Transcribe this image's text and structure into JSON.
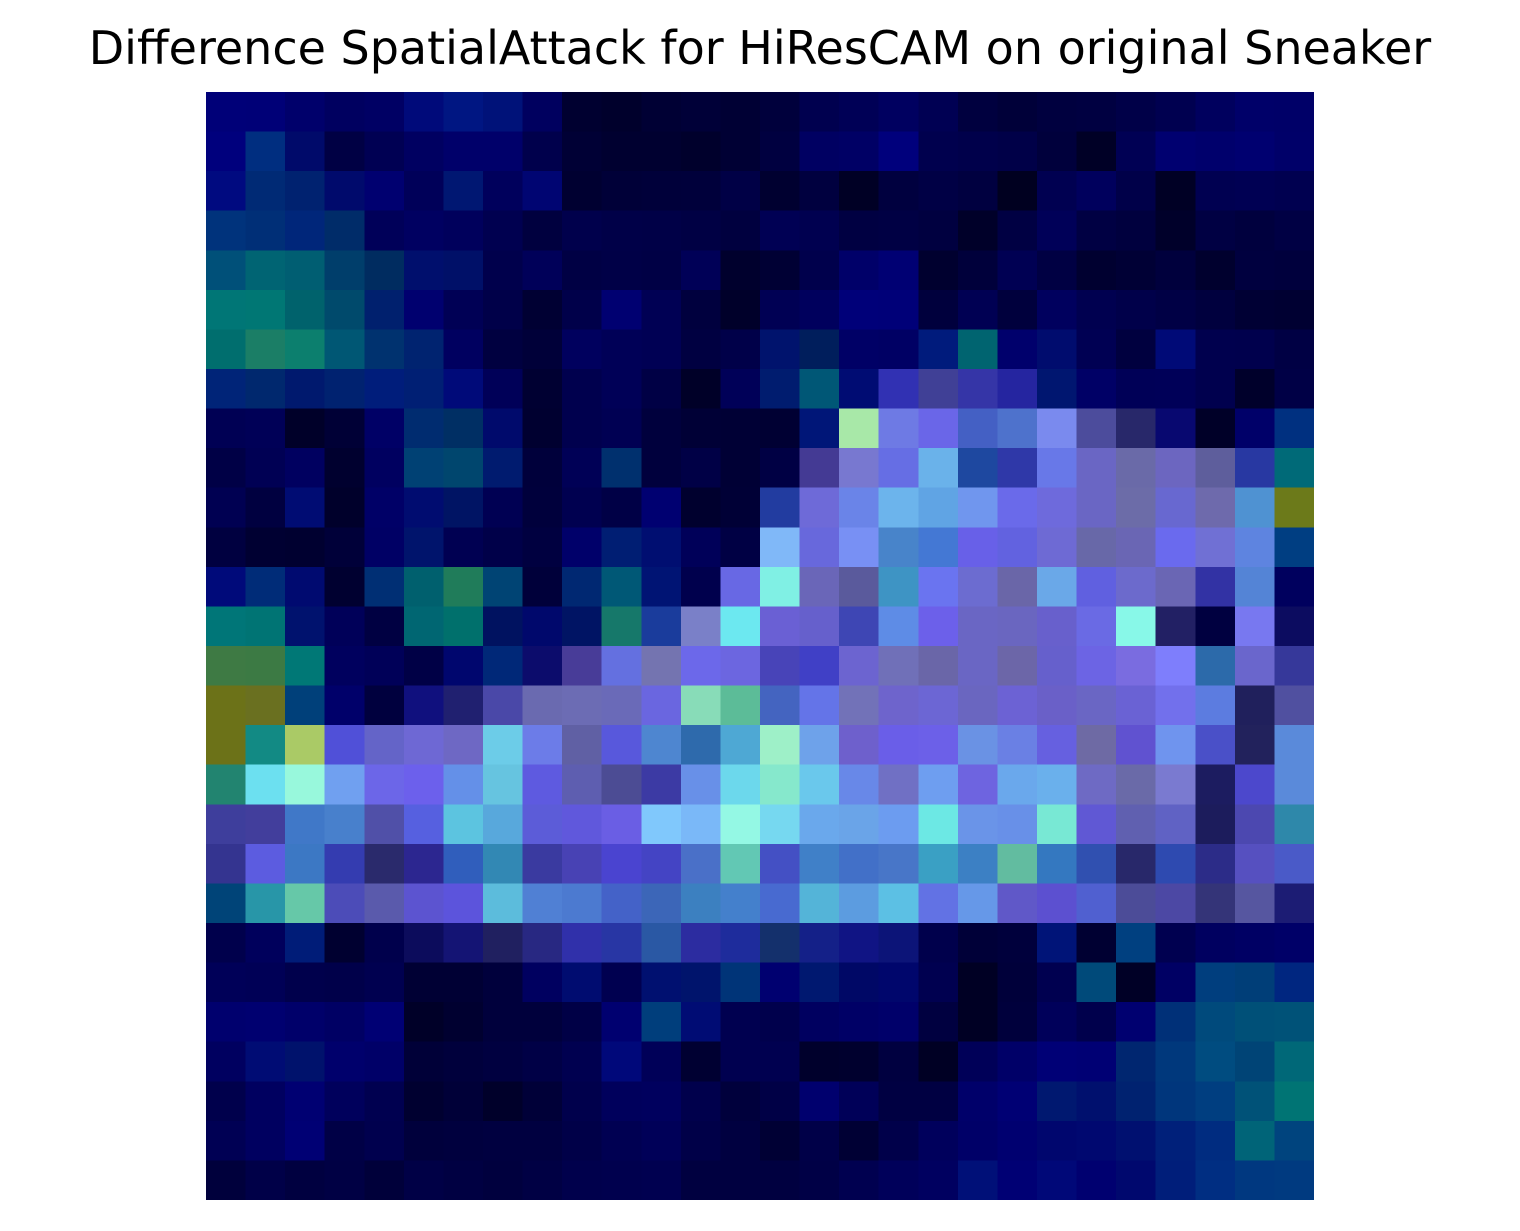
{
  "chart_data": {
    "type": "heatmap",
    "title": "Difference SpatialAttack for HiResCAM on original Sneaker",
    "rows": 28,
    "cols": 28,
    "axes": "off",
    "grid": false,
    "legend": "none",
    "colors": [
      [
        "#000078",
        "#000077",
        "#00006b",
        "#000060",
        "#000064",
        "#000a7a",
        "#001682",
        "#001279",
        "#00005f",
        "#000030",
        "#00002c",
        "#000034",
        "#000038",
        "#000034",
        "#00003c",
        "#00004f",
        "#000056",
        "#000060",
        "#000053",
        "#00003f",
        "#000039",
        "#00003f",
        "#000041",
        "#000048",
        "#000050",
        "#00005e",
        "#000069",
        "#000068"
      ],
      [
        "#00007d",
        "#002e80",
        "#000a6a",
        "#000044",
        "#000053",
        "#000061",
        "#00006a",
        "#00006a",
        "#00004c",
        "#000035",
        "#000030",
        "#000030",
        "#00002c",
        "#000034",
        "#000040",
        "#000062",
        "#000065",
        "#00007c",
        "#00004e",
        "#00004b",
        "#000048",
        "#00003c",
        "#000026",
        "#000054",
        "#000070",
        "#00006c",
        "#000070",
        "#000069"
      ],
      [
        "#000a80",
        "#002a75",
        "#002270",
        "#000a6c",
        "#000070",
        "#000059",
        "#001772",
        "#00005c",
        "#000572",
        "#000031",
        "#000038",
        "#00003a",
        "#00003b",
        "#000046",
        "#000030",
        "#00003f",
        "#000025",
        "#00003f",
        "#000045",
        "#000040",
        "#000020",
        "#000051",
        "#00005d",
        "#000049",
        "#000025",
        "#000051",
        "#000053",
        "#000050"
      ],
      [
        "#00337c",
        "#002f77",
        "#00267a",
        "#002c69",
        "#000059",
        "#000061",
        "#00005c",
        "#000050",
        "#00003f",
        "#00004c",
        "#000048",
        "#000047",
        "#000044",
        "#00003f",
        "#000054",
        "#000050",
        "#000042",
        "#000044",
        "#000040",
        "#000029",
        "#000043",
        "#000058",
        "#000043",
        "#00003e",
        "#00002a",
        "#000043",
        "#00003e",
        "#000044"
      ],
      [
        "#005079",
        "#006473",
        "#005e72",
        "#003e6b",
        "#002c60",
        "#000f6d",
        "#001068",
        "#00004c",
        "#000059",
        "#000044",
        "#000047",
        "#000045",
        "#000057",
        "#00002d",
        "#000034",
        "#00004c",
        "#000069",
        "#000073",
        "#00002f",
        "#00003b",
        "#000053",
        "#000043",
        "#000030",
        "#000035",
        "#00003d",
        "#00002e",
        "#00003f",
        "#00003d"
      ],
      [
        "#007676",
        "#007774",
        "#00626c",
        "#004a6c",
        "#00206e",
        "#00006f",
        "#000055",
        "#000049",
        "#000033",
        "#00004a",
        "#000071",
        "#000054",
        "#00003e",
        "#00002a",
        "#000054",
        "#00005d",
        "#000079",
        "#000078",
        "#00003d",
        "#000053",
        "#00003d",
        "#00005e",
        "#000050",
        "#00004a",
        "#000045",
        "#00003e",
        "#000034",
        "#000032"
      ],
      [
        "#006e6e",
        "#1b7e66",
        "#0c7f6e",
        "#005774",
        "#00326f",
        "#002370",
        "#000060",
        "#000040",
        "#000039",
        "#00005e",
        "#000057",
        "#000054",
        "#000041",
        "#000049",
        "#00136d",
        "#001e5c",
        "#000066",
        "#000064",
        "#001b7c",
        "#006470",
        "#00006c",
        "#000c6e",
        "#000053",
        "#00003f",
        "#000a77",
        "#00004e",
        "#00004d",
        "#000044"
      ],
      [
        "#002478",
        "#00286e",
        "#00196e",
        "#002270",
        "#001d7b",
        "#001f74",
        "#000a79",
        "#000058",
        "#000032",
        "#00004e",
        "#000057",
        "#000045",
        "#000028",
        "#000058",
        "#001c6f",
        "#005776",
        "#000c73",
        "#3131b3",
        "#404096",
        "#3535a7",
        "#2525a0",
        "#001670",
        "#000066",
        "#000057",
        "#000058",
        "#00004e",
        "#00002b",
        "#000046"
      ],
      [
        "#000054",
        "#000057",
        "#000029",
        "#000036",
        "#000066",
        "#002c70",
        "#002f64",
        "#000a6c",
        "#000030",
        "#00004e",
        "#000053",
        "#00003d",
        "#000036",
        "#000035",
        "#000033",
        "#001678",
        "#a8e8a8",
        "#6e7ae4",
        "#6a66e8",
        "#4460c4",
        "#4e72cc",
        "#7a8aee",
        "#4c4c9c",
        "#28286a",
        "#080870",
        "#000028",
        "#000069",
        "#003080"
      ],
      [
        "#000046",
        "#000054",
        "#000060",
        "#00002f",
        "#000060",
        "#004174",
        "#00466e",
        "#001b6f",
        "#00003b",
        "#000056",
        "#00306e",
        "#00003d",
        "#000046",
        "#000035",
        "#000044",
        "#443a94",
        "#7878d0",
        "#666ee4",
        "#6ab2ea",
        "#1e48a0",
        "#2f38a8",
        "#6878e8",
        "#6a66c4",
        "#6a6aa8",
        "#6c66c0",
        "#5e5e9c",
        "#2838a2",
        "#006a78"
      ],
      [
        "#000052",
        "#000040",
        "#000c73",
        "#00002b",
        "#000067",
        "#000c70",
        "#001464",
        "#000053",
        "#00003c",
        "#000050",
        "#000046",
        "#000071",
        "#00002e",
        "#000036",
        "#223ca0",
        "#6e6ad8",
        "#6a84e8",
        "#6cb4ec",
        "#60a4e4",
        "#7096ee",
        "#6a6aea",
        "#6e6adc",
        "#6a66c4",
        "#6c6ca8",
        "#6868d0",
        "#6e6aac",
        "#4f92d2",
        "#6c7a1a"
      ],
      [
        "#000040",
        "#000032",
        "#000030",
        "#000039",
        "#000065",
        "#00146c",
        "#000052",
        "#000049",
        "#000040",
        "#00006a",
        "#001e73",
        "#000e71",
        "#000059",
        "#000044",
        "#80b8f8",
        "#6868dc",
        "#7890f4",
        "#4884ca",
        "#4478d4",
        "#6860e8",
        "#6262e0",
        "#6e6ad4",
        "#6868a8",
        "#6a66b4",
        "#6a6aee",
        "#7070d4",
        "#5e84e0",
        "#003e82"
      ],
      [
        "#000a7a",
        "#002c78",
        "#000a70",
        "#000030",
        "#002f74",
        "#00606e",
        "#207c5a",
        "#004474",
        "#00003a",
        "#002872",
        "#005876",
        "#001474",
        "#00004d",
        "#6868e4",
        "#80f0e4",
        "#6a66b8",
        "#5a5a9c",
        "#3e94c4",
        "#6a74f0",
        "#6c6cd0",
        "#6a66a8",
        "#6aa8e8",
        "#6060e0",
        "#6c6acc",
        "#6a66b4",
        "#3232a4",
        "#5484d6",
        "#00005e"
      ],
      [
        "#007678",
        "#007474",
        "#00126e",
        "#000059",
        "#000042",
        "#006672",
        "#00706c",
        "#001260",
        "#00086c",
        "#001464",
        "#16786a",
        "#1a3c9c",
        "#7a80c8",
        "#6ce8f0",
        "#6a60d4",
        "#6660cc",
        "#3e46b4",
        "#5e8ce6",
        "#6c60ea",
        "#6a66c4",
        "#6a66c0",
        "#6860cc",
        "#6a6ae4",
        "#88f8e8",
        "#222064",
        "#000040",
        "#7878f0",
        "#0c0c60"
      ],
      [
        "#3e7a44",
        "#3c7a44",
        "#007876",
        "#00005e",
        "#000058",
        "#000046",
        "#00066e",
        "#002878",
        "#0c0c6c",
        "#483c98",
        "#6470e0",
        "#7474b0",
        "#6c68ea",
        "#6c66e0",
        "#4844b8",
        "#4040c6",
        "#6c64d0",
        "#7070b8",
        "#6a66a8",
        "#6a66c4",
        "#6c66a8",
        "#6660cc",
        "#6c64e4",
        "#7a6ce0",
        "#7e7efc",
        "#2c6aaa",
        "#6a66cc",
        "#36389a"
      ],
      [
        "#6c7218",
        "#6a7020",
        "#00407a",
        "#00006a",
        "#00003e",
        "#10107e",
        "#202070",
        "#4a48a8",
        "#6a6ab0",
        "#6c6cb4",
        "#6a6ab8",
        "#6a66e0",
        "#88dcb8",
        "#5cbc98",
        "#4464c0",
        "#6474e8",
        "#7272b8",
        "#6e64cc",
        "#6c66d4",
        "#6a66c0",
        "#6c62d4",
        "#6a60c8",
        "#6a66c4",
        "#6a62d4",
        "#7270ec",
        "#5c7ce0",
        "#20205c",
        "#5050a0"
      ],
      [
        "#6c7218",
        "#128a84",
        "#aaca66",
        "#5050d8",
        "#6464c8",
        "#6e68d4",
        "#6e68c4",
        "#6ccce8",
        "#6c7ce8",
        "#6060a4",
        "#5858dc",
        "#4e86d0",
        "#2e6aac",
        "#4ea8d4",
        "#9ef0c8",
        "#6ea2ea",
        "#6e60cc",
        "#6a5ee8",
        "#6c60e8",
        "#6a92e4",
        "#6a80e4",
        "#6660e0",
        "#6e6aa4",
        "#6052d0",
        "#6f94ee",
        "#4a50c8",
        "#22225c",
        "#5a8ada"
      ],
      [
        "#228470",
        "#6ce0f0",
        "#98f8dc",
        "#70a0f0",
        "#6c66e8",
        "#6c60ec",
        "#6490e8",
        "#66c4e0",
        "#5e5ae0",
        "#5e5eb0",
        "#4c4c94",
        "#3c3aa4",
        "#6890e8",
        "#6cd8ec",
        "#86e8cc",
        "#6ac8ec",
        "#6888e8",
        "#7070c4",
        "#6e9ef0",
        "#6e64e0",
        "#6aa8ec",
        "#6ab0ec",
        "#6e6ac4",
        "#6a6aa8",
        "#7a7ad0",
        "#1c1c60",
        "#4c48cc",
        "#5a8ada"
      ],
      [
        "#3e3e9c",
        "#423e9c",
        "#4078c8",
        "#4880cc",
        "#5050a8",
        "#5660e0",
        "#5cc4e0",
        "#58a8dc",
        "#5c5cd8",
        "#6058dc",
        "#6a5ee4",
        "#80c8fc",
        "#7ab8f8",
        "#94f8e4",
        "#76d8f0",
        "#6aa8ec",
        "#6aa4e8",
        "#6c9cf0",
        "#6ce8e4",
        "#6a94e8",
        "#6890e8",
        "#78e8d4",
        "#6058d4",
        "#6060b0",
        "#6062c4",
        "#1c1c5c",
        "#4c48b0",
        "#2e88aa"
      ],
      [
        "#343490",
        "#5c5ce0",
        "#3c78c4",
        "#343cb0",
        "#2a2a6c",
        "#2c2690",
        "#305ebc",
        "#3288b4",
        "#3a3aa0",
        "#4842b4",
        "#4a44d0",
        "#4444c4",
        "#4a70c8",
        "#62c8b4",
        "#4450c4",
        "#4080c8",
        "#4270c8",
        "#4876c8",
        "#3aa0c4",
        "#3c80c4",
        "#62bca0",
        "#3478c0",
        "#3050b0",
        "#28286a",
        "#2e4ab0",
        "#2c2c88",
        "#5650c0",
        "#4a5ac8"
      ],
      [
        "#004478",
        "#2896a8",
        "#66c8a8",
        "#4c4cb8",
        "#5a5aac",
        "#5c54d0",
        "#5c54dc",
        "#5cbcdc",
        "#5080d4",
        "#4c7ad0",
        "#4462c8",
        "#3c66b8",
        "#3c80c0",
        "#4480cc",
        "#486ad0",
        "#54b4d8",
        "#5c9ce0",
        "#5cc0e4",
        "#6272e4",
        "#6698e8",
        "#6058c8",
        "#5c50d0",
        "#5060d0",
        "#4c4c98",
        "#4c48a4",
        "#343478",
        "#5656a0",
        "#1c1c74"
      ],
      [
        "#00004c",
        "#00005c",
        "#001c78",
        "#000030",
        "#00004c",
        "#0c0c5c",
        "#141474",
        "#202060",
        "#282882",
        "#3030aa",
        "#2836a4",
        "#2a58a4",
        "#2c2ca0",
        "#1e2c9c",
        "#14306c",
        "#142088",
        "#101484",
        "#0c1478",
        "#00004c",
        "#000038",
        "#00003c",
        "#001478",
        "#000032",
        "#004080",
        "#000050",
        "#000060",
        "#000064",
        "#000068"
      ],
      [
        "#000058",
        "#000056",
        "#00004c",
        "#00004a",
        "#000050",
        "#000034",
        "#000034",
        "#00003c",
        "#000060",
        "#000c70",
        "#000050",
        "#001070",
        "#00146c",
        "#003478",
        "#000070",
        "#001870",
        "#000866",
        "#00066c",
        "#000050",
        "#000024",
        "#00003a",
        "#000050",
        "#004a7a",
        "#000026",
        "#000064",
        "#003e7e",
        "#003e78",
        "#002680"
      ],
      [
        "#00006e",
        "#000070",
        "#00006a",
        "#000064",
        "#000074",
        "#000028",
        "#000030",
        "#00003c",
        "#00003c",
        "#000046",
        "#000070",
        "#003e7c",
        "#000c74",
        "#000050",
        "#00004c",
        "#000060",
        "#000066",
        "#00006a",
        "#000040",
        "#000024",
        "#00003c",
        "#00005a",
        "#00004c",
        "#000070",
        "#003078",
        "#004a7c",
        "#005078",
        "#005278"
      ],
      [
        "#000060",
        "#000c74",
        "#00126c",
        "#00006c",
        "#000068",
        "#000038",
        "#00003c",
        "#000040",
        "#000046",
        "#000050",
        "#00087a",
        "#000058",
        "#000032",
        "#000050",
        "#000050",
        "#00002c",
        "#00002e",
        "#000040",
        "#000024",
        "#000058",
        "#000068",
        "#000076",
        "#000074",
        "#002670",
        "#00387c",
        "#004c80",
        "#004476",
        "#006878"
      ],
      [
        "#00004c",
        "#000060",
        "#000072",
        "#00005c",
        "#000050",
        "#000030",
        "#000038",
        "#00002a",
        "#000038",
        "#00004c",
        "#00005c",
        "#00005e",
        "#00004c",
        "#00003c",
        "#000046",
        "#00006e",
        "#000058",
        "#000042",
        "#000042",
        "#00006a",
        "#000074",
        "#001870",
        "#00106e",
        "#002270",
        "#00367c",
        "#003e80",
        "#005278",
        "#007474"
      ],
      [
        "#000054",
        "#000060",
        "#000074",
        "#000046",
        "#00004e",
        "#00003c",
        "#00003e",
        "#000040",
        "#000040",
        "#000048",
        "#000052",
        "#000058",
        "#000048",
        "#000040",
        "#000034",
        "#000048",
        "#000034",
        "#00004a",
        "#00005c",
        "#000068",
        "#000070",
        "#00066e",
        "#000870",
        "#001070",
        "#00207a",
        "#002c80",
        "#006478",
        "#00447e"
      ],
      [
        "#00003c",
        "#000048",
        "#000040",
        "#000044",
        "#00003a",
        "#000046",
        "#000042",
        "#00003e",
        "#000044",
        "#00004c",
        "#00004e",
        "#000050",
        "#000040",
        "#000040",
        "#000040",
        "#000046",
        "#000050",
        "#00005a",
        "#000060",
        "#001078",
        "#000074",
        "#000878",
        "#000070",
        "#00086e",
        "#001e7a",
        "#002e82",
        "#003880",
        "#003a80"
      ]
    ]
  }
}
